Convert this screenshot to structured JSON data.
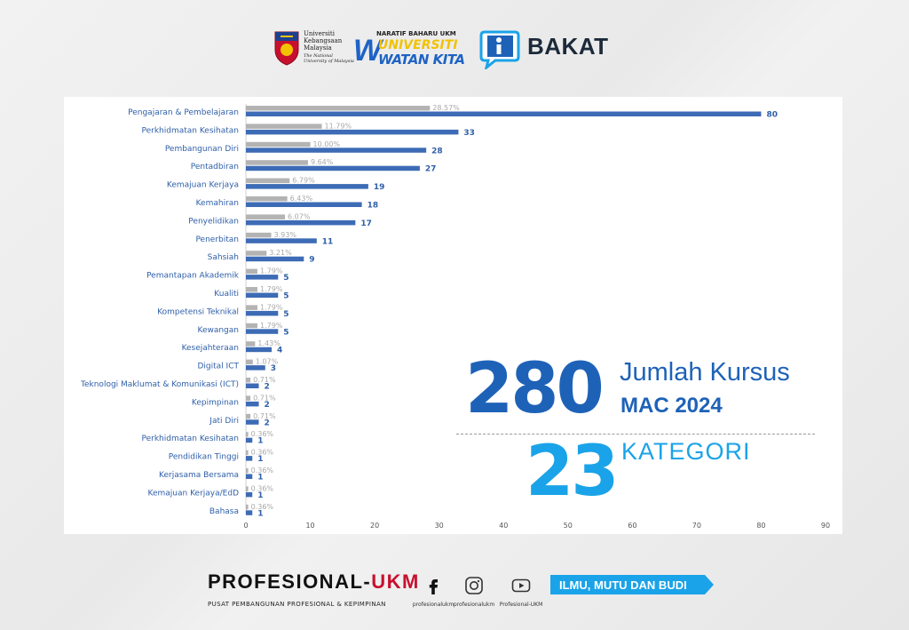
{
  "header": {
    "ukm_name": [
      "Universiti",
      "Kebangsaan",
      "Malaysia"
    ],
    "ukm_sub": "The National University of Malaysia",
    "naratif": "NARATIF BAHARU UKM",
    "universiti": "UNIVERSITI",
    "watan_kita": "WATAN KITA",
    "bakat": "BAKAT"
  },
  "colors": {
    "bar_value": "#3d6bb5",
    "bar_percent": "#b3b3b3",
    "accent_dark_blue": "#1e62b8",
    "accent_light_blue": "#1aa3e8",
    "motto_bg": "#1aa3e8",
    "red": "#c8102e"
  },
  "chart_data": {
    "type": "bar",
    "orientation": "horizontal",
    "categories": [
      "Pengajaran & Pembelajaran",
      "Perkhidmatan Kesihatan",
      "Pembangunan Diri",
      "Pentadbiran",
      "Kemajuan Kerjaya",
      "Kemahiran",
      "Penyelidikan",
      "Penerbitan",
      "Sahsiah",
      "Pemantapan Akademik",
      "Kualiti",
      "Kompetensi Teknikal",
      "Kewangan",
      "Kesejahteraan",
      "Digital ICT",
      "Teknologi Maklumat & Komunikasi (ICT)",
      "Kepimpinan",
      "Jati Diri",
      "Perkhidmatan Kesihatan",
      "Pendidikan Tinggi",
      "Kerjasama Bersama",
      "Kemajuan Kerjaya/EdD",
      "Bahasa"
    ],
    "series": [
      {
        "values": [
          80,
          33,
          28,
          27,
          19,
          18,
          17,
          11,
          9,
          5,
          5,
          5,
          5,
          4,
          3,
          2,
          2,
          2,
          1,
          1,
          1,
          1,
          1
        ]
      },
      {
        "values": [
          28.57,
          11.79,
          10.0,
          9.64,
          6.79,
          6.43,
          6.07,
          3.93,
          3.21,
          1.79,
          1.79,
          1.79,
          1.79,
          1.43,
          1.07,
          0.71,
          0.71,
          0.71,
          0.36,
          0.36,
          0.36,
          0.36,
          0.36
        ]
      }
    ],
    "value_labels": [
      "80",
      "33",
      "28",
      "27",
      "19",
      "18",
      "17",
      "11",
      "9",
      "5",
      "5",
      "5",
      "5",
      "4",
      "3",
      "2",
      "2",
      "2",
      "1",
      "1",
      "1",
      "1",
      "1"
    ],
    "percent_labels": [
      "28.57%",
      "11.79%",
      "10.00%",
      "9.64%",
      "6.79%",
      "6.43%",
      "6.07%",
      "3.93%",
      "3.21%",
      "1.79%",
      "1.79%",
      "1.79%",
      "1.79%",
      "1.43%",
      "1.07%",
      "0.71%",
      "0.71%",
      "0.71%",
      "0.36%",
      "0.36%",
      "0.36%",
      "0.36%",
      "0.36%"
    ],
    "xlim": [
      0,
      90
    ],
    "xticks": [
      0,
      10,
      20,
      30,
      40,
      50,
      60,
      70,
      80,
      90
    ],
    "grid": false,
    "legend": "none"
  },
  "summary": {
    "total": "280",
    "total_label": "Jumlah Kursus",
    "period": "MAC 2024",
    "categories_count": "23",
    "categories_label": "KATEGORI"
  },
  "footer": {
    "brand_prefix": "PROFESIONAL-",
    "brand_suffix": "UKM",
    "tagline": "PUSAT PEMBANGUNAN PROFESIONAL & KEPIMPINAN",
    "social": [
      {
        "icon": "facebook-icon",
        "label": "profesionalukm"
      },
      {
        "icon": "instagram-icon",
        "label": "profesionalukm"
      },
      {
        "icon": "youtube-icon",
        "label": "Profesional-UKM"
      }
    ],
    "motto": "ILMU, MUTU DAN BUDI"
  }
}
